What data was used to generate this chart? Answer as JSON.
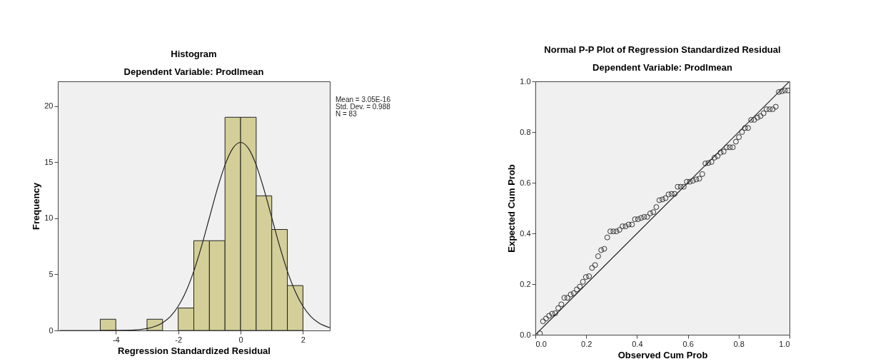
{
  "chart_data": [
    {
      "type": "histogram",
      "title": "Histogram",
      "subtitle": "Dependent Variable: Prodlmean",
      "xlabel": "Regression Standardized Residual",
      "ylabel": "Frequency",
      "bins": [
        -4.5,
        -4,
        -3.5,
        -3,
        -2.5,
        -2,
        -1.5,
        -1,
        -0.5,
        0,
        0.5,
        1,
        1.5,
        2
      ],
      "values": [
        1,
        0,
        0,
        1,
        0,
        2,
        8,
        8,
        19,
        19,
        12,
        9,
        4
      ],
      "color": "#d4cf98",
      "series": [
        {
          "type": "line",
          "color": "#222222",
          "x": [
            -5.8,
            -4.5,
            -3.5,
            -3,
            -2.5,
            -2.25,
            -2,
            -1.75,
            -1.5,
            -1.25,
            -1,
            -0.75,
            -0.5,
            -0.25,
            0,
            0.25,
            0.5,
            0.75,
            1,
            1.25,
            1.5,
            1.75,
            2,
            2.25,
            2.5,
            2.86
          ],
          "values": [
            0,
            0,
            0.03,
            0.17,
            0.68,
            1.25,
            2.16,
            3.49,
            5.29,
            7.53,
            10.05,
            12.57,
            14.75,
            16.23,
            16.76,
            16.23,
            14.75,
            12.57,
            10.05,
            7.53,
            5.29,
            3.49,
            2.16,
            1.25,
            0.68,
            0.25
          ]
        }
      ],
      "xlim": [
        -5.86,
        2.86
      ],
      "ylim": [
        0,
        22.2
      ],
      "xticks": [
        -4,
        -2,
        0,
        2
      ],
      "yticks": [
        0,
        5,
        10,
        15,
        20
      ],
      "annotations": [
        "Mean = 3.05E-16",
        "Std. Dev. = 0.988",
        "N = 83"
      ]
    },
    {
      "type": "scatter",
      "title": "Normal P-P Plot of Regression Standardized Residual",
      "subtitle": "Dependent Variable: Prodlmean",
      "xlabel": "Observed Cum Prob",
      "ylabel": "Expected Cum Prob",
      "series": [
        {
          "type": "scatter",
          "color": "#333333",
          "marker": "circle",
          "x": [
            0.018,
            0.03,
            0.042,
            0.054,
            0.066,
            0.078,
            0.09,
            0.102,
            0.114,
            0.126,
            0.139,
            0.151,
            0.163,
            0.175,
            0.187,
            0.199,
            0.211,
            0.223,
            0.235,
            0.247,
            0.259,
            0.271,
            0.283,
            0.295,
            0.307,
            0.319,
            0.331,
            0.343,
            0.355,
            0.367,
            0.38,
            0.392,
            0.404,
            0.416,
            0.428,
            0.44,
            0.452,
            0.464,
            0.476,
            0.488,
            0.5,
            0.512,
            0.524,
            0.536,
            0.548,
            0.56,
            0.572,
            0.584,
            0.596,
            0.608,
            0.62,
            0.633,
            0.645,
            0.657,
            0.669,
            0.681,
            0.693,
            0.705,
            0.717,
            0.729,
            0.741,
            0.753,
            0.765,
            0.777,
            0.789,
            0.801,
            0.813,
            0.825,
            0.837,
            0.849,
            0.861,
            0.874,
            0.886,
            0.898,
            0.91,
            0.922,
            0.934,
            0.946,
            0.958,
            0.97,
            0.982,
            0.994
          ],
          "values": [
            0.005,
            0.053,
            0.064,
            0.075,
            0.083,
            0.085,
            0.105,
            0.12,
            0.146,
            0.146,
            0.159,
            0.164,
            0.179,
            0.19,
            0.209,
            0.228,
            0.231,
            0.264,
            0.275,
            0.31,
            0.334,
            0.339,
            0.384,
            0.408,
            0.408,
            0.408,
            0.414,
            0.428,
            0.428,
            0.435,
            0.435,
            0.456,
            0.456,
            0.461,
            0.465,
            0.465,
            0.479,
            0.484,
            0.504,
            0.531,
            0.534,
            0.539,
            0.554,
            0.556,
            0.556,
            0.584,
            0.584,
            0.584,
            0.604,
            0.604,
            0.608,
            0.613,
            0.616,
            0.634,
            0.676,
            0.678,
            0.682,
            0.699,
            0.705,
            0.719,
            0.723,
            0.74,
            0.74,
            0.74,
            0.762,
            0.78,
            0.8,
            0.816,
            0.816,
            0.848,
            0.848,
            0.857,
            0.863,
            0.874,
            0.89,
            0.89,
            0.89,
            0.9,
            0.958,
            0.961,
            0.964,
            0.964
          ]
        },
        {
          "type": "line",
          "color": "#222222",
          "x": [
            0,
            1
          ],
          "values": [
            0,
            1
          ]
        }
      ],
      "xlim": [
        0,
        1
      ],
      "ylim": [
        0,
        1
      ],
      "xticks": [
        {
          "value": 0,
          "label": "0.0"
        },
        {
          "value": 0.2,
          "label": "0.2"
        },
        {
          "value": 0.4,
          "label": "0.4"
        },
        {
          "value": 0.6,
          "label": "0.6"
        },
        {
          "value": 0.8,
          "label": "0.8"
        },
        {
          "value": 1,
          "label": "1.0"
        }
      ],
      "yticks": [
        {
          "value": 0,
          "label": "0.0"
        },
        {
          "value": 0.2,
          "label": "0.2"
        },
        {
          "value": 0.4,
          "label": "0.4"
        },
        {
          "value": 0.6,
          "label": "0.6"
        },
        {
          "value": 0.8,
          "label": "0.8"
        },
        {
          "value": 1,
          "label": "1.0"
        }
      ]
    }
  ]
}
